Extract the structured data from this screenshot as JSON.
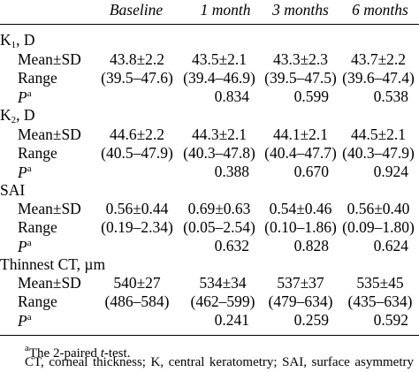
{
  "columns": [
    "Baseline",
    "1 month",
    "3 months",
    "6 months"
  ],
  "sections": [
    {
      "title_main": "K",
      "title_sub": "1",
      "title_rest": ", D",
      "rows": [
        {
          "label": "Mean±SD",
          "values": [
            "43.8±2.2",
            "43.5±2.1",
            "43.3±2.3",
            "43.7±2.2"
          ]
        },
        {
          "label": "Range",
          "values": [
            "(39.5–47.6)",
            "(39.4–46.9)",
            "(39.5–47.5)",
            "(39.6–47.4)"
          ]
        },
        {
          "label": "P",
          "label_sup": "a",
          "values": [
            "",
            "0.834",
            "0.599",
            "0.538"
          ]
        }
      ]
    },
    {
      "title_main": "K",
      "title_sub": "2",
      "title_rest": ", D",
      "rows": [
        {
          "label": "Mean±SD",
          "values": [
            "44.6±2.2",
            "44.3±2.1",
            "44.1±2.1",
            "44.5±2.1"
          ]
        },
        {
          "label": "Range",
          "values": [
            "(40.5–47.9)",
            "(40.3–47.8)",
            "(40.4–47.7)",
            "(40.3–47.9)"
          ]
        },
        {
          "label": "P",
          "label_sup": "a",
          "values": [
            "",
            "0.388",
            "0.670",
            "0.924"
          ]
        }
      ]
    },
    {
      "title_main": "SAI",
      "title_sub": "",
      "title_rest": "",
      "rows": [
        {
          "label": "Mean±SD",
          "values": [
            "0.56±0.44",
            "0.69±0.63",
            "0.54±0.46",
            "0.56±0.40"
          ]
        },
        {
          "label": "Range",
          "values": [
            "(0.19–2.34)",
            "(0.05–2.54)",
            "(0.10–1.86)",
            "(0.09–1.80)"
          ]
        },
        {
          "label": "P",
          "label_sup": "a",
          "values": [
            "",
            "0.632",
            "0.828",
            "0.624"
          ]
        }
      ]
    },
    {
      "title_main": "Thinnest CT, µm",
      "title_sub": "",
      "title_rest": "",
      "rows": [
        {
          "label": "Mean±SD",
          "values": [
            "540±27",
            "534±34",
            "537±37",
            "535±45"
          ]
        },
        {
          "label": "Range",
          "values": [
            "(486–584)",
            "(462–599)",
            "(479–634)",
            "(435–634)"
          ]
        },
        {
          "label": "P",
          "label_sup": "a",
          "values": [
            "",
            "0.241",
            "0.259",
            "0.592"
          ]
        }
      ]
    }
  ],
  "footnote_a": {
    "marker": "a",
    "before": "The 2-paired ",
    "italic": "t",
    "after": "-test."
  },
  "abbreviations": "CT, corneal thickness; K, central keratometry; SAI, surface asymmetry index; SD, standard deviation."
}
